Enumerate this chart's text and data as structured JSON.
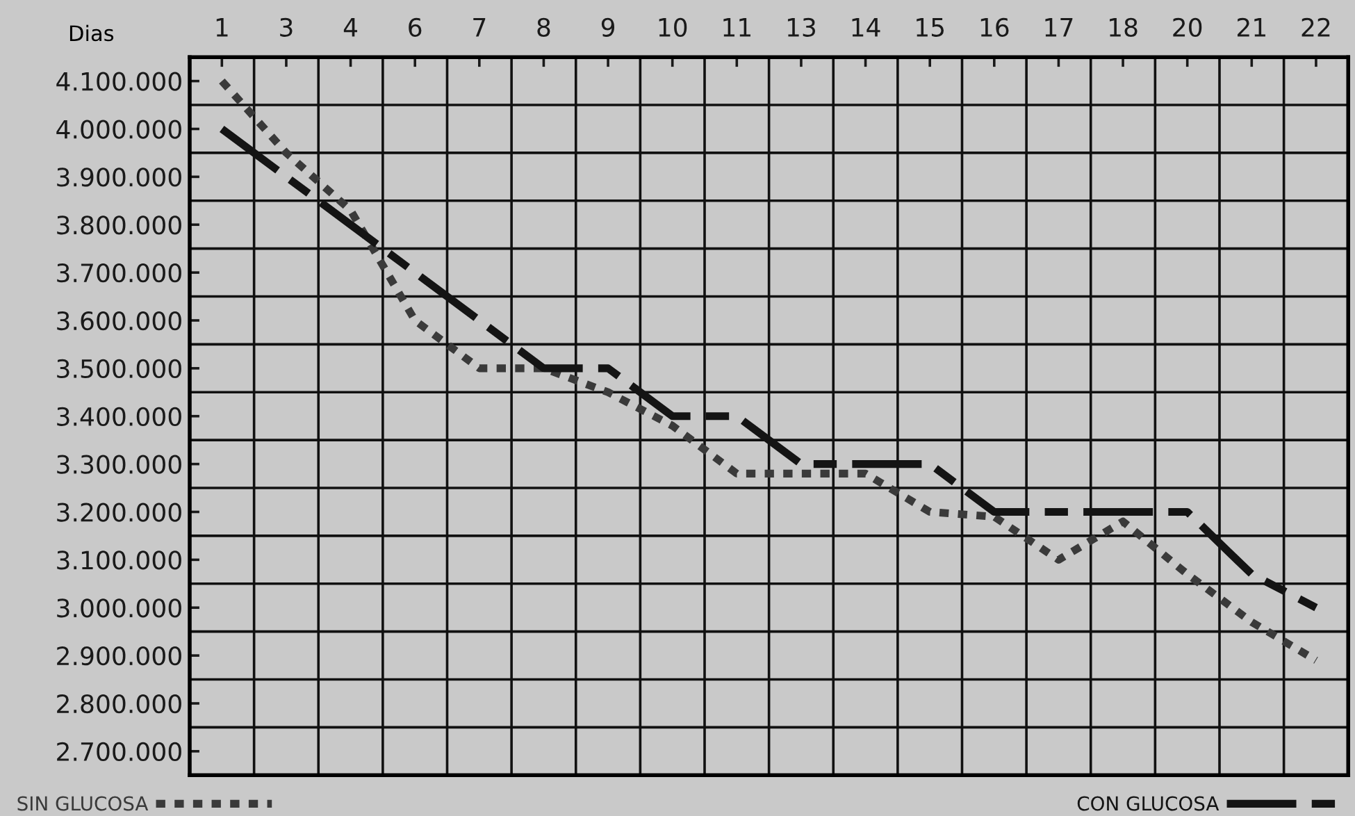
{
  "chart_data": {
    "type": "line",
    "xlabel": "Dias",
    "categories": [
      "1",
      "3",
      "4",
      "6",
      "7",
      "8",
      "9",
      "10",
      "11",
      "13",
      "14",
      "15",
      "16",
      "17",
      "18",
      "20",
      "21",
      "22"
    ],
    "series": [
      {
        "name": "SIN GLUCOSA",
        "color": "#3a3a3a",
        "line_style": "dotted",
        "values": [
          4100000,
          3950000,
          3830000,
          3600000,
          3500000,
          3500000,
          3450000,
          3380000,
          3280000,
          3280000,
          3280000,
          3200000,
          3190000,
          3100000,
          3180000,
          3070000,
          2970000,
          2890000
        ]
      },
      {
        "name": "CON GLUCOSA",
        "color": "#141414",
        "line_style": "dashed",
        "values": [
          4000000,
          3900000,
          3800000,
          3700000,
          3600000,
          3500000,
          3500000,
          3400000,
          3400000,
          3300000,
          3300000,
          3300000,
          3200000,
          3200000,
          3200000,
          3200000,
          3070000,
          3000000
        ]
      }
    ],
    "ylim": [
      2650000,
      4150000
    ],
    "yticks": [
      {
        "value": 4100000,
        "label": "4.100.000"
      },
      {
        "value": 4000000,
        "label": "4.000.000"
      },
      {
        "value": 3900000,
        "label": "3.900.000"
      },
      {
        "value": 3800000,
        "label": "3.800.000"
      },
      {
        "value": 3700000,
        "label": "3.700.000"
      },
      {
        "value": 3600000,
        "label": "3.600.000"
      },
      {
        "value": 3500000,
        "label": "3.500.000"
      },
      {
        "value": 3400000,
        "label": "3.400.000"
      },
      {
        "value": 3300000,
        "label": "3.300.000"
      },
      {
        "value": 3200000,
        "label": "3.200.000"
      },
      {
        "value": 3100000,
        "label": "3.100.000"
      },
      {
        "value": 3000000,
        "label": "3.000.000"
      },
      {
        "value": 2900000,
        "label": "2.900.000"
      },
      {
        "value": 2800000,
        "label": "2.800.000"
      },
      {
        "value": 2700000,
        "label": "2.700.000"
      }
    ],
    "grid": true,
    "legend": "bottom",
    "marker": "none"
  }
}
